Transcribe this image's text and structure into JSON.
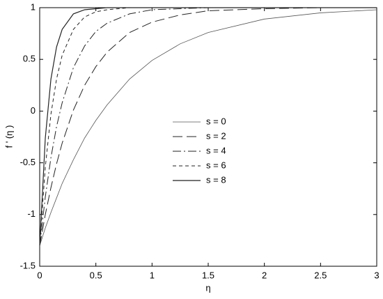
{
  "chart_data": {
    "type": "line",
    "xlabel": "η",
    "ylabel": "f ' (η )",
    "x": [
      0,
      0.05,
      0.1,
      0.15,
      0.2,
      0.3,
      0.4,
      0.5,
      0.6,
      0.8,
      1,
      1.25,
      1.5,
      2,
      2.5,
      3
    ],
    "series": [
      {
        "name": "s = 0",
        "color": "#555555",
        "width": 0.8,
        "dash": "none",
        "values": [
          -1.3,
          -1.13,
          -0.98,
          -0.84,
          -0.7,
          -0.47,
          -0.26,
          -0.09,
          0.06,
          0.31,
          0.49,
          0.65,
          0.76,
          0.89,
          0.95,
          0.98
        ]
      },
      {
        "name": "s = 2",
        "color": "#222222",
        "width": 1,
        "dash": "14 6",
        "values": [
          -1.3,
          -1.0,
          -0.74,
          -0.51,
          -0.31,
          0.01,
          0.25,
          0.43,
          0.57,
          0.76,
          0.86,
          0.93,
          0.97,
          0.99,
          1,
          1
        ]
      },
      {
        "name": "s = 4",
        "color": "#222222",
        "width": 1,
        "dash": "12 4 2 4",
        "values": [
          -1.3,
          -0.83,
          -0.45,
          -0.15,
          0.08,
          0.42,
          0.63,
          0.77,
          0.85,
          0.94,
          0.98,
          0.99,
          1,
          1,
          1,
          1
        ]
      },
      {
        "name": "s = 6",
        "color": "#222222",
        "width": 1,
        "dash": "5 4",
        "values": [
          -1.3,
          -0.54,
          -0.03,
          0.31,
          0.54,
          0.79,
          0.91,
          0.96,
          0.98,
          1,
          1,
          1,
          1,
          1,
          1,
          1
        ]
      },
      {
        "name": "s = 8",
        "color": "#222222",
        "width": 1.2,
        "dash": "none",
        "values": [
          -1.3,
          -0.26,
          0.31,
          0.62,
          0.79,
          0.94,
          0.98,
          0.99,
          1,
          1,
          1,
          1,
          1,
          1,
          1,
          1
        ]
      }
    ],
    "xlim": [
      0,
      3
    ],
    "xticks": [
      0,
      0.5,
      1,
      1.5,
      2,
      2.5,
      3
    ],
    "ylim": [
      -1.5,
      1
    ],
    "yticks": [
      -1.5,
      -1,
      -0.5,
      0,
      0.5,
      1
    ],
    "grid": false
  }
}
